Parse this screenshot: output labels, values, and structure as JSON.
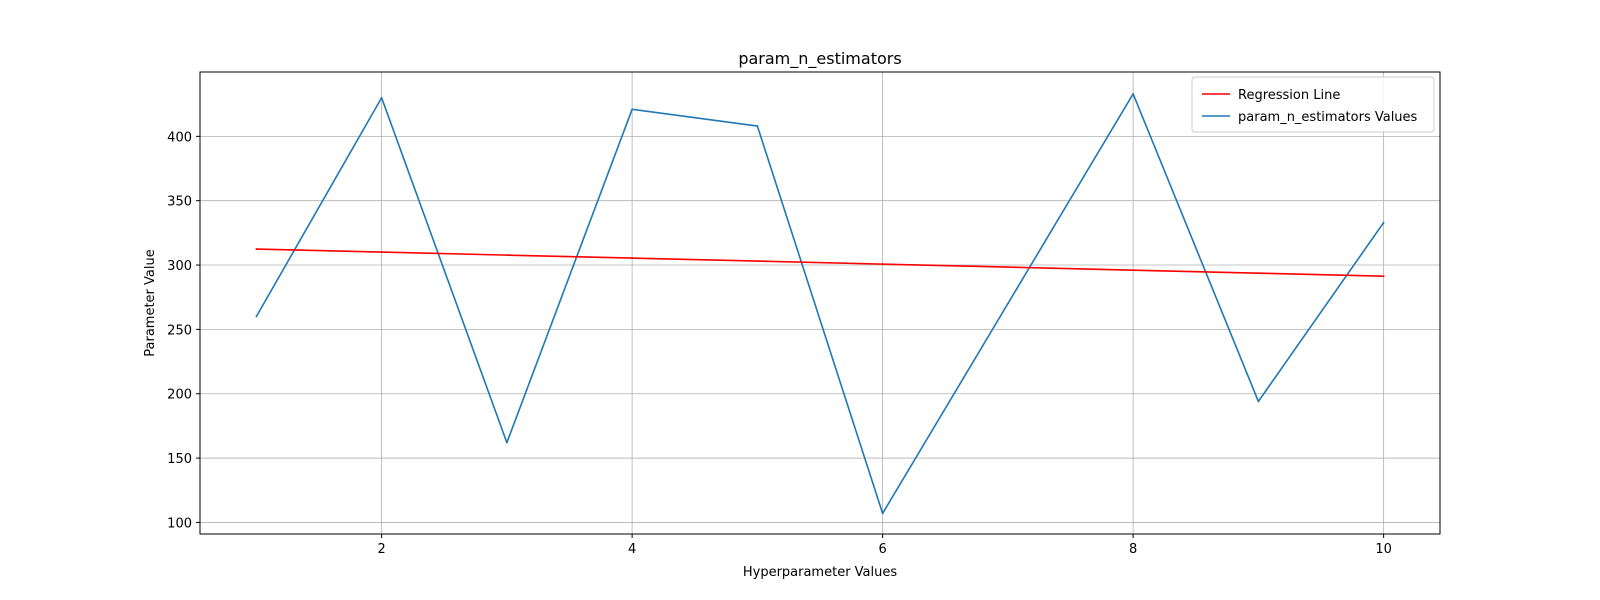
{
  "chart_data": {
    "type": "line",
    "title": "param_n_estimators",
    "xlabel": "Hyperparameter Values",
    "ylabel": "Parameter Value",
    "x": [
      1,
      2,
      3,
      4,
      5,
      6,
      7,
      8,
      9,
      10
    ],
    "series": [
      {
        "name": "param_n_estimators Values",
        "color": "#1f77b4",
        "values": [
          260,
          430,
          162,
          421,
          408,
          107,
          270,
          433,
          194,
          333
        ]
      },
      {
        "name": "Regression Line",
        "color": "#ff0000",
        "values": [
          312.4,
          310.1,
          307.7,
          305.4,
          303.1,
          300.7,
          298.4,
          296.0,
          293.7,
          291.3
        ]
      }
    ],
    "xlim": [
      0.55,
      10.45
    ],
    "ylim": [
      91,
      450
    ],
    "xticks": [
      2,
      4,
      6,
      8,
      10
    ],
    "yticks": [
      100,
      150,
      200,
      250,
      300,
      350,
      400
    ],
    "grid": true,
    "legend": {
      "position": "upper right",
      "order": [
        "Regression Line",
        "param_n_estimators Values"
      ]
    }
  }
}
